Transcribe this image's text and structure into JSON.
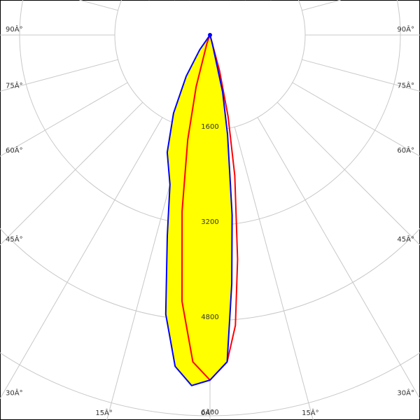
{
  "chart_data": {
    "type": "polar",
    "x": [
      -90,
      -35,
      -30,
      -25,
      -20,
      -15,
      -12,
      -9,
      -6,
      -3,
      0,
      3,
      5,
      7,
      10,
      12.5,
      15,
      20,
      30,
      90
    ],
    "series": [
      {
        "color": "#0000ff",
        "fill": "#ffff00",
        "values": [
          0,
          300,
          800,
          1450,
          2100,
          2600,
          3450,
          4750,
          5600,
          5900,
          5800,
          5500,
          4200,
          3050,
          1700,
          980,
          150,
          0,
          0,
          0
        ]
      },
      {
        "color": "#ff0000",
        "values": [
          0,
          0,
          0,
          0,
          150,
          900,
          1800,
          3000,
          4500,
          5500,
          5800,
          5500,
          4900,
          3800,
          2400,
          1400,
          620,
          0,
          0,
          0
        ]
      }
    ],
    "rlim": [
      0,
      6400
    ],
    "rticks": [
      1600,
      3200,
      4800,
      6400
    ],
    "thetaticks": [
      {
        "value": -90,
        "label": "90Â°"
      },
      {
        "value": -75,
        "label": "75Â°"
      },
      {
        "value": -60,
        "label": "60Â°"
      },
      {
        "value": -45,
        "label": "45Â°"
      },
      {
        "value": -30,
        "label": "30Â°"
      },
      {
        "value": -15,
        "label": "15Â°"
      },
      {
        "value": 0,
        "label": "0Â°"
      },
      {
        "value": 15,
        "label": "15Â°"
      },
      {
        "value": 30,
        "label": "30Â°"
      },
      {
        "value": 45,
        "label": "45Â°"
      },
      {
        "value": 60,
        "label": "60Â°"
      },
      {
        "value": 75,
        "label": "75Â°"
      },
      {
        "value": 90,
        "label": "90Â°"
      }
    ],
    "grid": true
  }
}
